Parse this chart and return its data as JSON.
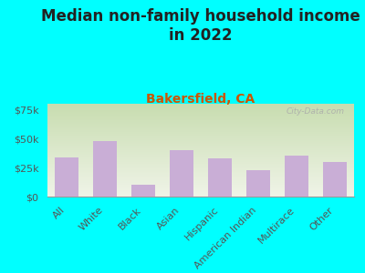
{
  "title": "Median non-family household income\nin 2022",
  "subtitle": "Bakersfield, CA",
  "categories": [
    "All",
    "White",
    "Black",
    "Asian",
    "Hispanic",
    "American Indian",
    "Multirace",
    "Other"
  ],
  "values": [
    34000,
    48000,
    10000,
    40000,
    33000,
    23000,
    35000,
    30000
  ],
  "bar_color": "#c9aed6",
  "background_outer": "#00ffff",
  "background_chart_top_left": "#c8ddb0",
  "background_chart_top_right": "#ddeedd",
  "background_chart_bottom": "#f0f0e8",
  "title_color": "#222222",
  "subtitle_color": "#cc5500",
  "ytick_labels": [
    "$0",
    "$25k",
    "$50k",
    "$75k"
  ],
  "ytick_values": [
    0,
    25000,
    50000,
    75000
  ],
  "ylim": [
    0,
    80000
  ],
  "watermark": "City-Data.com",
  "title_fontsize": 12,
  "subtitle_fontsize": 10,
  "tick_fontsize": 8,
  "axis_label_color": "#555555"
}
